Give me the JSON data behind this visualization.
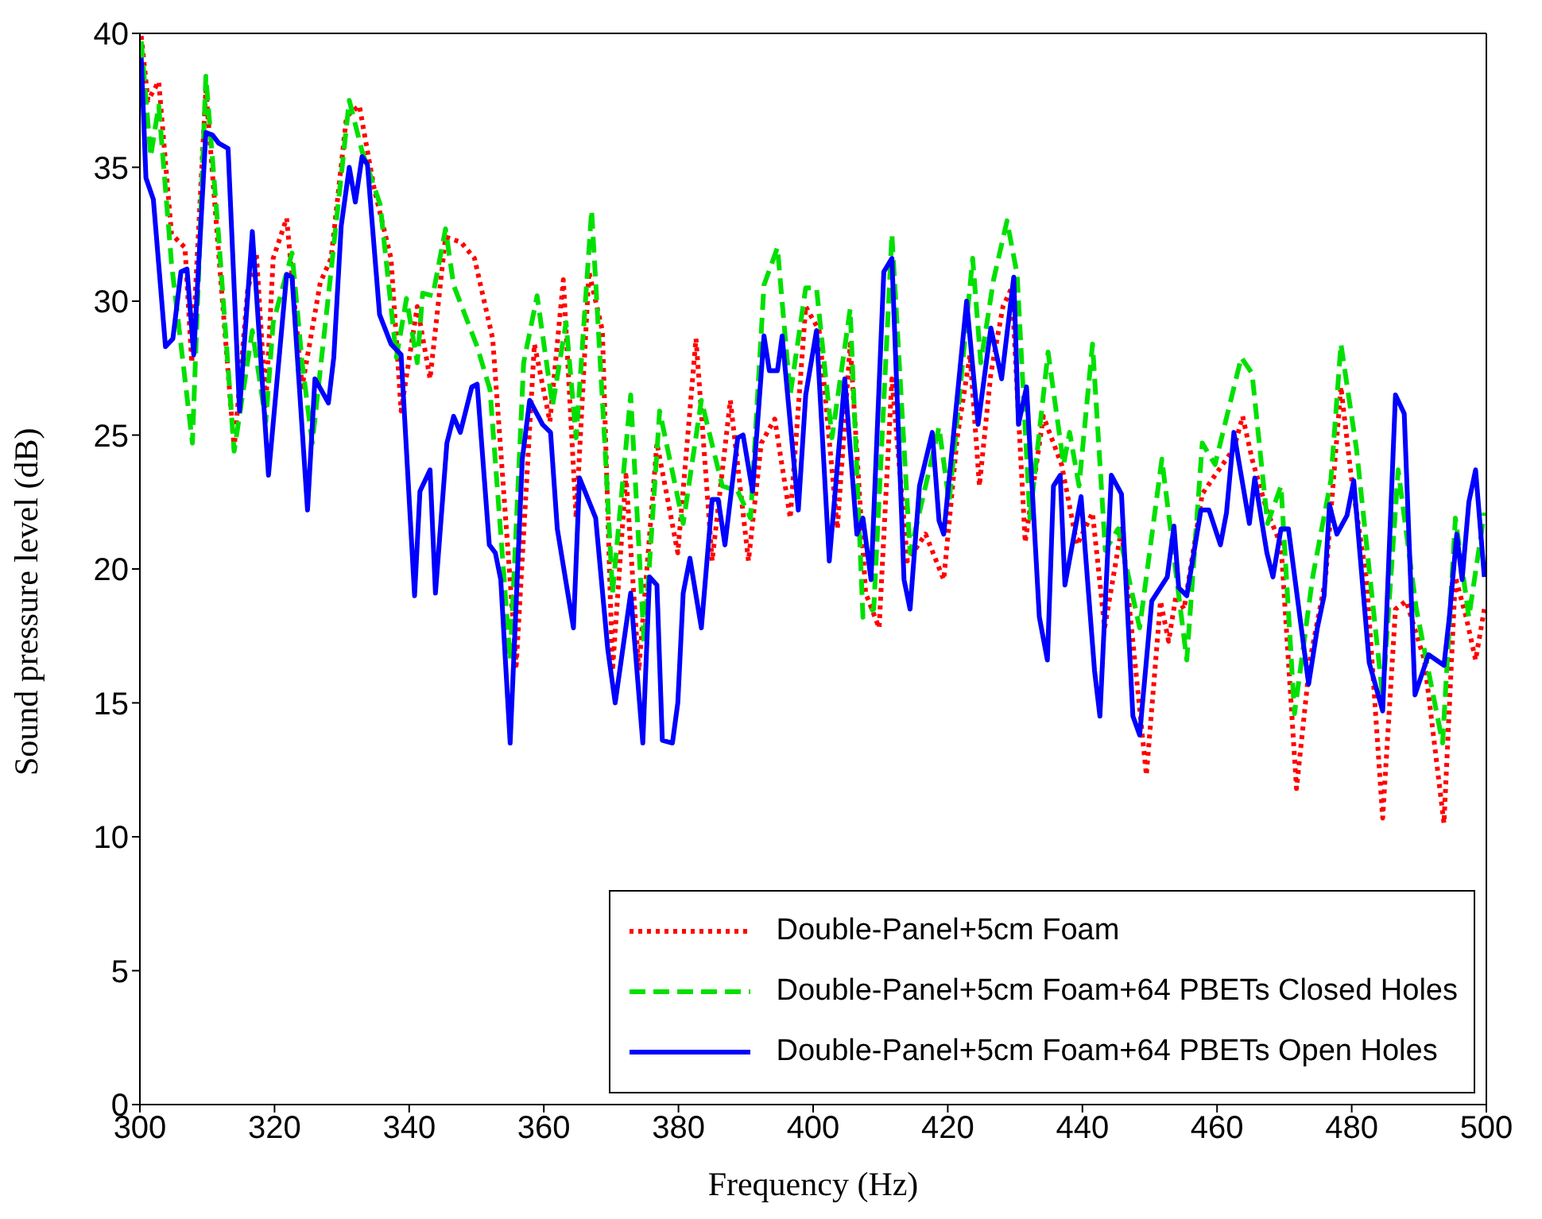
{
  "chart_data": {
    "type": "line",
    "xlabel": "Frequency (Hz)",
    "ylabel": "Sound pressure level (dB)",
    "xlim": [
      300,
      500
    ],
    "xticks": [
      300,
      320,
      340,
      360,
      380,
      400,
      420,
      440,
      460,
      480,
      500
    ],
    "ylim": [
      0,
      40
    ],
    "yticks": [
      0,
      5,
      10,
      15,
      20,
      25,
      30,
      35,
      40
    ],
    "legend": "bottom right",
    "marker": "none",
    "series": [
      {
        "name": "Double-Panel+5cm Foam",
        "color": "#ff0000",
        "line_style": "dotted",
        "x": [
          300.2,
          301.2,
          302.8,
          304.7,
          306.7,
          307.7,
          309.8,
          311.7,
          314.0,
          316.0,
          317.3,
          318.7,
          319.8,
          321.8,
          324.1,
          326.8,
          328.4,
          330.7,
          332.6,
          334.8,
          337.3,
          338.8,
          341.2,
          343.1,
          345.4,
          347.7,
          349.7,
          352.4,
          355.9,
          358.6,
          360.9,
          362.9,
          364.8,
          366.7,
          368.7,
          370.2,
          372.2,
          374.1,
          376.8,
          379.9,
          382.6,
          385.0,
          387.7,
          390.4,
          392.3,
          394.3,
          396.6,
          398.9,
          400.9,
          403.6,
          405.5,
          407.8,
          409.8,
          411.7,
          414.0,
          416.7,
          419.4,
          421.4,
          423.3,
          424.7,
          426.4,
          428.2,
          429.5,
          431.5,
          434.2,
          436.9,
          439.2,
          441.5,
          443.3,
          445.8,
          449.5,
          451.6,
          452.8,
          453.9,
          455.1,
          457.8,
          459.7,
          462.5,
          463.8,
          465.2,
          467.5,
          469.5,
          471.8,
          473.8,
          476.1,
          478.4,
          479.9,
          482.2,
          484.6,
          486.5,
          488.1,
          490.8,
          493.7,
          495.4,
          497.0,
          498.4,
          499.7
        ],
        "values": [
          39.9,
          37.5,
          38.2,
          32.5,
          32.0,
          27.7,
          37.9,
          31.8,
          24.5,
          30.4,
          31.8,
          26.1,
          31.6,
          33.1,
          26.8,
          30.7,
          31.6,
          36.9,
          37.3,
          34.2,
          31.6,
          25.9,
          29.8,
          27.1,
          32.4,
          32.2,
          31.6,
          28.6,
          16.4,
          28.4,
          25.5,
          30.8,
          21.9,
          31.1,
          28.9,
          16.2,
          23.5,
          16.2,
          24.7,
          20.6,
          28.6,
          20.3,
          26.3,
          20.3,
          24.7,
          25.6,
          21.9,
          29.8,
          28.9,
          21.5,
          28.4,
          19.1,
          17.8,
          27.1,
          20.3,
          21.3,
          19.6,
          24.9,
          28.0,
          23.1,
          27.3,
          29.8,
          30.5,
          21.0,
          25.7,
          23.9,
          20.9,
          22.1,
          17.8,
          21.5,
          12.3,
          18.8,
          17.3,
          19.0,
          18.5,
          22.8,
          23.5,
          24.5,
          25.7,
          24.1,
          22.1,
          20.9,
          11.8,
          16.6,
          19.6,
          26.8,
          23.5,
          19.6,
          10.7,
          18.5,
          18.8,
          16.6,
          10.5,
          19.7,
          18.2,
          16.6,
          18.5
        ]
      },
      {
        "name": "Double-Panel+5cm Foam+64 PBETs Closed Holes",
        "color": "#00e000",
        "line_style": "dashed",
        "x": [
          300.2,
          301.6,
          302.8,
          304.7,
          307.8,
          309.8,
          311.7,
          314.0,
          316.7,
          318.7,
          319.8,
          322.6,
          324.1,
          325.6,
          328.0,
          331.1,
          333.0,
          335.7,
          338.1,
          339.6,
          341.2,
          342.0,
          343.5,
          345.4,
          346.6,
          350.1,
          352.0,
          355.0,
          357.0,
          359.0,
          361.3,
          363.3,
          364.8,
          367.1,
          369.1,
          370.2,
          372.9,
          374.9,
          377.2,
          380.7,
          383.4,
          386.5,
          388.8,
          390.7,
          392.7,
          394.7,
          396.6,
          398.9,
          400.5,
          402.8,
          405.5,
          407.4,
          409.0,
          411.7,
          414.4,
          416.7,
          418.7,
          420.2,
          423.7,
          424.9,
          426.8,
          428.8,
          430.3,
          432.2,
          434.9,
          437.2,
          438.1,
          439.5,
          441.5,
          443.4,
          445.3,
          448.5,
          451.8,
          455.5,
          457.8,
          459.7,
          463.6,
          465.2,
          467.5,
          469.5,
          471.5,
          474.2,
          476.9,
          478.4,
          480.7,
          484.6,
          486.9,
          489.6,
          493.5,
          495.4,
          497.4,
          499.7
        ],
        "values": [
          39.7,
          35.4,
          37.3,
          31.4,
          24.7,
          38.4,
          32.4,
          24.4,
          28.9,
          25.5,
          29.2,
          31.8,
          27.7,
          24.7,
          30.2,
          37.5,
          35.6,
          33.6,
          27.9,
          30.1,
          27.7,
          30.3,
          30.2,
          32.7,
          30.6,
          28.3,
          26.7,
          16.6,
          27.7,
          30.2,
          26.1,
          29.2,
          24.9,
          33.4,
          24.5,
          19.1,
          26.5,
          17.2,
          25.9,
          21.7,
          26.3,
          23.1,
          22.9,
          21.9,
          30.6,
          32.0,
          26.5,
          30.5,
          30.5,
          24.9,
          29.7,
          18.2,
          18.5,
          32.5,
          20.6,
          23.1,
          25.3,
          22.5,
          31.6,
          27.7,
          30.8,
          33.0,
          31.0,
          21.9,
          28.1,
          23.9,
          25.1,
          23.1,
          28.4,
          20.7,
          21.5,
          17.8,
          24.1,
          16.6,
          24.7,
          23.9,
          27.9,
          27.3,
          21.7,
          23.1,
          14.6,
          19.7,
          23.3,
          28.4,
          24.5,
          15.2,
          23.7,
          18.5,
          13.5,
          21.9,
          18.2,
          22.1
        ]
      },
      {
        "name": "Double-Panel+5cm Foam+64 PBETs Open Holes",
        "color": "#0000ff",
        "line_style": "solid",
        "x": [
          300.2,
          300.9,
          302.0,
          303.8,
          304.9,
          306.1,
          307.0,
          308.0,
          309.8,
          310.8,
          311.7,
          313.1,
          314.8,
          316.7,
          319.1,
          321.8,
          322.6,
          324.9,
          326.0,
          328.0,
          328.8,
          329.9,
          331.1,
          332.0,
          333.0,
          333.8,
          335.6,
          337.3,
          338.8,
          340.8,
          341.6,
          343.1,
          343.9,
          345.6,
          346.6,
          347.6,
          349.3,
          350.1,
          351.9,
          352.8,
          353.6,
          355.0,
          356.8,
          357.9,
          359.8,
          361.0,
          362.0,
          364.4,
          365.3,
          367.7,
          369.5,
          370.6,
          372.9,
          374.7,
          375.7,
          376.8,
          377.6,
          379.1,
          379.9,
          380.7,
          381.7,
          383.4,
          385.0,
          385.9,
          386.9,
          388.8,
          389.6,
          391.0,
          392.7,
          393.5,
          394.7,
          395.4,
          397.8,
          398.9,
          400.5,
          402.4,
          404.7,
          406.5,
          407.4,
          408.6,
          410.5,
          411.7,
          413.5,
          414.4,
          415.8,
          417.7,
          418.7,
          419.4,
          422.8,
          424.5,
          426.4,
          428.0,
          429.8,
          430.5,
          431.7,
          433.6,
          434.8,
          435.7,
          436.7,
          437.4,
          439.8,
          441.8,
          442.6,
          444.3,
          445.8,
          447.5,
          448.5,
          450.3,
          452.6,
          453.6,
          454.3,
          455.5,
          457.6,
          458.8,
          460.5,
          461.4,
          462.5,
          464.8,
          465.6,
          467.4,
          468.3,
          469.5,
          470.6,
          473.6,
          474.9,
          475.9,
          476.7,
          477.8,
          479.3,
          480.3,
          482.6,
          484.6,
          486.5,
          487.8,
          489.4,
          491.4,
          493.7,
          494.5,
          495.6,
          496.4,
          497.4,
          498.4,
          499.7
        ],
        "values": [
          39.1,
          34.6,
          33.8,
          28.3,
          28.6,
          31.1,
          31.2,
          28.0,
          36.3,
          36.2,
          35.9,
          35.7,
          25.9,
          32.6,
          23.5,
          31.0,
          30.9,
          22.2,
          27.1,
          26.2,
          27.9,
          32.8,
          35.0,
          33.7,
          35.4,
          35.1,
          29.5,
          28.4,
          28.0,
          19.0,
          22.9,
          23.7,
          19.1,
          24.7,
          25.7,
          25.1,
          26.8,
          26.9,
          20.9,
          20.6,
          19.6,
          13.5,
          24.1,
          26.3,
          25.4,
          25.1,
          21.5,
          17.8,
          23.4,
          21.9,
          17.0,
          15.0,
          19.1,
          13.5,
          19.7,
          19.4,
          13.6,
          13.5,
          15.0,
          19.1,
          20.4,
          17.8,
          22.6,
          22.6,
          20.9,
          24.9,
          25.0,
          22.9,
          28.7,
          27.4,
          27.4,
          28.7,
          22.2,
          26.5,
          28.9,
          20.3,
          27.1,
          21.3,
          21.9,
          19.6,
          31.1,
          31.6,
          19.6,
          18.5,
          23.1,
          25.1,
          21.8,
          21.3,
          30.0,
          25.4,
          29.0,
          27.1,
          30.9,
          25.4,
          26.8,
          18.2,
          16.6,
          23.1,
          23.5,
          19.4,
          22.7,
          16.2,
          14.5,
          23.5,
          22.8,
          14.5,
          13.8,
          18.8,
          19.7,
          21.6,
          19.3,
          19.0,
          22.2,
          22.2,
          20.9,
          22.1,
          25.1,
          21.7,
          23.4,
          20.6,
          19.7,
          21.5,
          21.5,
          15.7,
          17.8,
          19.0,
          22.4,
          21.3,
          22.0,
          23.3,
          16.5,
          14.7,
          26.5,
          25.8,
          15.3,
          16.8,
          16.4,
          18.2,
          21.3,
          19.6,
          22.5,
          23.7,
          19.7
        ]
      }
    ]
  }
}
